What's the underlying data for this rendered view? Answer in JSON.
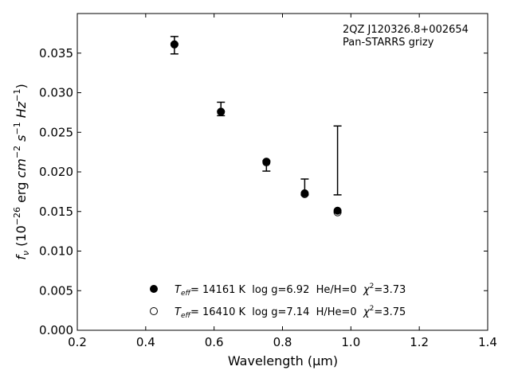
{
  "chart_data": {
    "type": "scatter",
    "annotation": [
      "2QZ J120326.8+002654",
      "Pan-STARRS grizy"
    ],
    "xlabel": "Wavelength (μm)",
    "ylabel_parts": {
      "f": "f",
      "nu": "ν",
      "a": " (10",
      "e1": "−26",
      "b": " erg ",
      "cm": "cm",
      "e2": "−2",
      "s": " s",
      "e3": "−1",
      "hz": " Hz",
      "e4": "−1",
      "c": ")"
    },
    "xlim": [
      0.2,
      1.4
    ],
    "ylim": [
      0.0,
      0.04
    ],
    "xticks": [
      {
        "value": 0.2,
        "label": "0.2"
      },
      {
        "value": 0.4,
        "label": "0.4"
      },
      {
        "value": 0.6,
        "label": "0.6"
      },
      {
        "value": 0.8,
        "label": "0.8"
      },
      {
        "value": 1.0,
        "label": "1.0"
      },
      {
        "value": 1.2,
        "label": "1.2"
      },
      {
        "value": 1.4,
        "label": "1.4"
      }
    ],
    "yticks": [
      {
        "value": 0.0,
        "label": "0.000"
      },
      {
        "value": 0.005,
        "label": "0.005"
      },
      {
        "value": 0.01,
        "label": "0.010"
      },
      {
        "value": 0.015,
        "label": "0.015"
      },
      {
        "value": 0.02,
        "label": "0.020"
      },
      {
        "value": 0.025,
        "label": "0.025"
      },
      {
        "value": 0.03,
        "label": "0.030"
      },
      {
        "value": 0.035,
        "label": "0.035"
      }
    ],
    "observed": [
      {
        "x": 0.484,
        "y": 0.036,
        "ylow": 0.0349,
        "yhigh": 0.0371
      },
      {
        "x": 0.62,
        "y": 0.02795,
        "ylow": 0.0271,
        "yhigh": 0.0288
      },
      {
        "x": 0.753,
        "y": 0.0211,
        "ylow": 0.0201,
        "yhigh": 0.0214
      },
      {
        "x": 0.865,
        "y": 0.0181,
        "ylow": 0.0171,
        "yhigh": 0.0191
      },
      {
        "x": 0.961,
        "y": 0.0214,
        "ylow": 0.0171,
        "yhigh": 0.0258
      }
    ],
    "series": [
      {
        "name": "Teff= 14161 K  log g=6.92  He/H=0  χ2=3.73",
        "marker": "filled",
        "x": [
          0.484,
          0.62,
          0.753,
          0.865,
          0.961
        ],
        "y": [
          0.0361,
          0.0276,
          0.0213,
          0.0173,
          0.0151
        ]
      },
      {
        "name": "Teff= 16410 K  log g=7.14  H/He=0  χ2=3.75",
        "marker": "open",
        "x": [
          0.484,
          0.62,
          0.753,
          0.865,
          0.961
        ],
        "y": [
          0.0361,
          0.0276,
          0.0212,
          0.0172,
          0.0149
        ]
      }
    ],
    "legend": {
      "placement": "lower-center",
      "entries": [
        {
          "marker": "filled",
          "T": "T",
          "eff": "eff",
          "a": "= 14161 K  log g=6.92  He/H=0  ",
          "chi": "χ",
          "sq": "2",
          "b": "=3.73"
        },
        {
          "marker": "open",
          "T": "T",
          "eff": "eff",
          "a": "= 16410 K  log g=7.14  H/He=0  ",
          "chi": "χ",
          "sq": "2",
          "b": "=3.75"
        }
      ]
    },
    "grid": false,
    "colors": {
      "marker": "#000000",
      "axes": "#000000",
      "background": "#ffffff"
    }
  }
}
